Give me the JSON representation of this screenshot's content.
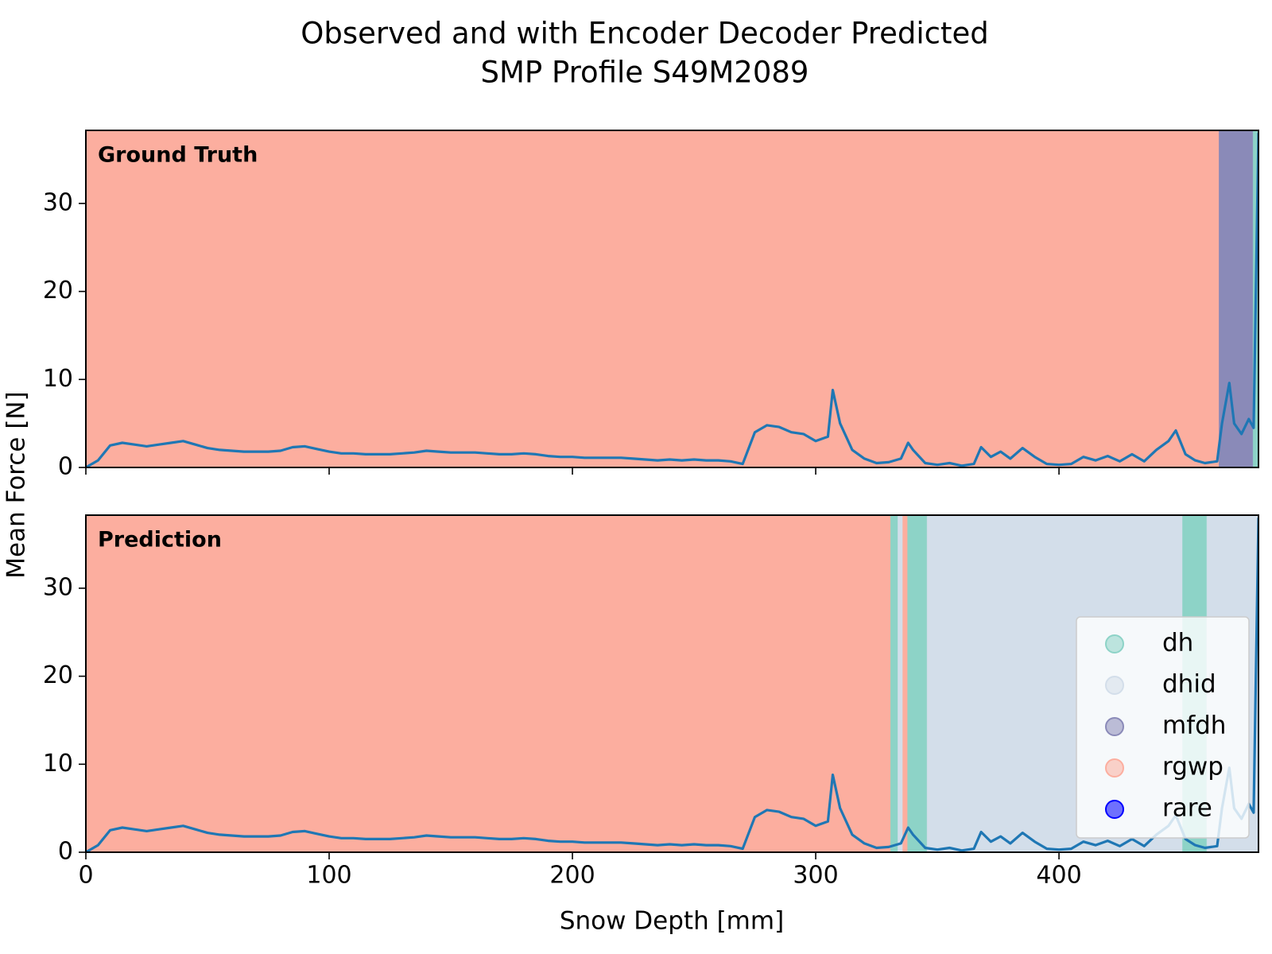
{
  "chart_data": {
    "type": "line",
    "title": "Observed and with Encoder Decoder Predicted",
    "subtitle": "SMP Profile S49M2089",
    "x_label": "Snow Depth [mm]",
    "y_label": "Mean Force [N]",
    "xlim": [
      0,
      482
    ],
    "ylim": [
      0,
      38.3
    ],
    "xticks": [
      0,
      100,
      200,
      300,
      400
    ],
    "yticks": [
      0,
      10,
      20,
      30
    ],
    "color": "#1f77b4",
    "x": [
      0,
      5,
      10,
      15,
      20,
      25,
      30,
      35,
      40,
      45,
      50,
      55,
      60,
      65,
      70,
      75,
      80,
      85,
      90,
      95,
      100,
      105,
      110,
      115,
      120,
      125,
      130,
      135,
      140,
      145,
      150,
      155,
      160,
      165,
      170,
      175,
      180,
      185,
      190,
      195,
      200,
      205,
      210,
      215,
      220,
      225,
      230,
      235,
      240,
      245,
      250,
      255,
      260,
      265,
      270,
      275,
      280,
      285,
      290,
      295,
      300,
      305,
      307,
      310,
      315,
      320,
      325,
      330,
      335,
      338,
      340,
      345,
      350,
      355,
      360,
      365,
      368,
      372,
      376,
      380,
      385,
      390,
      395,
      400,
      405,
      410,
      415,
      420,
      425,
      430,
      435,
      440,
      445,
      448,
      452,
      456,
      460,
      465,
      467,
      470,
      472,
      475,
      478,
      480,
      482
    ],
    "values": [
      0,
      0.8,
      2.5,
      2.8,
      2.6,
      2.4,
      2.6,
      2.8,
      3.0,
      2.6,
      2.2,
      2.0,
      1.9,
      1.8,
      1.8,
      1.8,
      1.9,
      2.3,
      2.4,
      2.1,
      1.8,
      1.6,
      1.6,
      1.5,
      1.5,
      1.5,
      1.6,
      1.7,
      1.9,
      1.8,
      1.7,
      1.7,
      1.7,
      1.6,
      1.5,
      1.5,
      1.6,
      1.5,
      1.3,
      1.2,
      1.2,
      1.1,
      1.1,
      1.1,
      1.1,
      1.0,
      0.9,
      0.8,
      0.9,
      0.8,
      0.9,
      0.8,
      0.8,
      0.7,
      0.4,
      4.0,
      4.8,
      4.6,
      4.0,
      3.8,
      3.0,
      3.5,
      8.8,
      5.0,
      2.0,
      1.0,
      0.5,
      0.6,
      1.0,
      2.8,
      2.0,
      0.5,
      0.3,
      0.5,
      0.2,
      0.4,
      2.3,
      1.2,
      1.8,
      1.0,
      2.2,
      1.2,
      0.4,
      0.3,
      0.4,
      1.2,
      0.8,
      1.3,
      0.7,
      1.5,
      0.7,
      2.0,
      3.0,
      4.2,
      1.5,
      0.8,
      0.5,
      0.7,
      5.0,
      9.6,
      5.0,
      3.8,
      5.5,
      4.5,
      38
    ],
    "classes": [
      {
        "name": "dh",
        "color": "#8dd3c7"
      },
      {
        "name": "dhid",
        "color": "#d3deea"
      },
      {
        "name": "mfdh",
        "color": "#8a8ab8"
      },
      {
        "name": "rgwp",
        "color": "#fcae9f"
      },
      {
        "name": "rare",
        "color": "#0000ff"
      }
    ],
    "legend": "lower right",
    "panels": [
      {
        "label": "Ground Truth",
        "segments": [
          {
            "class": "rgwp",
            "start": 0,
            "end": 466
          },
          {
            "class": "mfdh",
            "start": 466,
            "end": 480
          },
          {
            "class": "dh",
            "start": 480,
            "end": 482
          }
        ]
      },
      {
        "label": "Prediction",
        "segments": [
          {
            "class": "rgwp",
            "start": 0,
            "end": 331
          },
          {
            "class": "dh",
            "start": 331,
            "end": 334
          },
          {
            "class": "dhid",
            "start": 334,
            "end": 336
          },
          {
            "class": "rgwp",
            "start": 336,
            "end": 338
          },
          {
            "class": "dh",
            "start": 338,
            "end": 346
          },
          {
            "class": "dhid",
            "start": 346,
            "end": 451
          },
          {
            "class": "dh",
            "start": 451,
            "end": 461
          },
          {
            "class": "dhid",
            "start": 461,
            "end": 482
          }
        ]
      }
    ]
  }
}
